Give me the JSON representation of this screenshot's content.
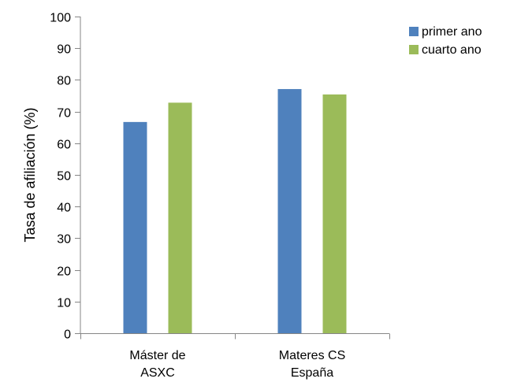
{
  "chart_data": {
    "type": "bar",
    "categories": [
      [
        "Máster de",
        "ASXC"
      ],
      [
        "Materes CS",
        "España"
      ]
    ],
    "series": [
      {
        "name": "primer ano",
        "color": "#4f81bd",
        "values": [
          66.7,
          77.1
        ]
      },
      {
        "name": "cuarto ano",
        "color": "#9bbb59",
        "values": [
          72.8,
          75.4
        ]
      }
    ],
    "ylabel": "Tasa de afiliación (%)",
    "ylim": [
      0,
      100
    ],
    "yticks": [
      0,
      10,
      20,
      30,
      40,
      50,
      60,
      70,
      80,
      90,
      100
    ],
    "grid": false,
    "legend_position": "right"
  }
}
